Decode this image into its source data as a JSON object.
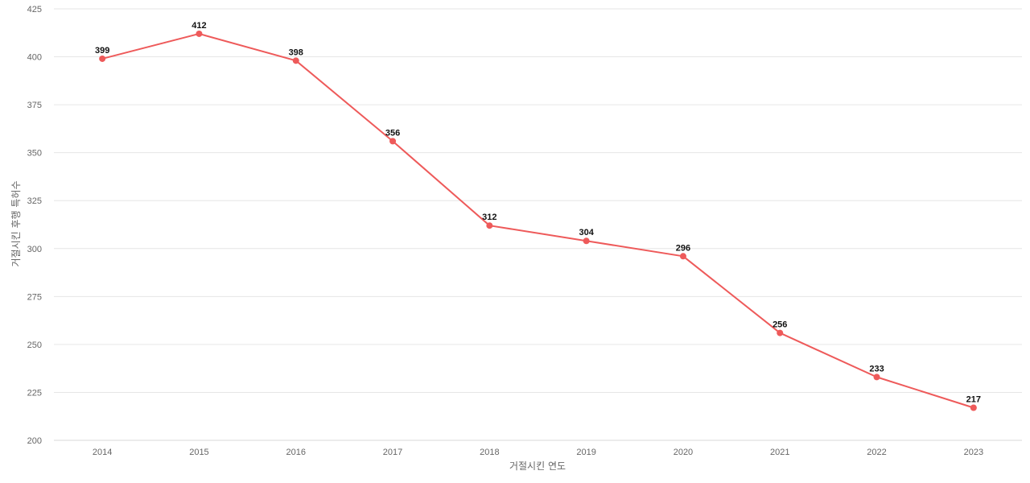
{
  "chart_data": {
    "type": "line",
    "categories": [
      "2014",
      "2015",
      "2016",
      "2017",
      "2018",
      "2019",
      "2020",
      "2021",
      "2022",
      "2023"
    ],
    "series": [
      {
        "values": [
          399,
          412,
          398,
          356,
          312,
          304,
          296,
          256,
          233,
          217
        ],
        "color": "#ee5a5a"
      }
    ],
    "xlabel": "거절시킨 연도",
    "ylabel": "거절시킨 후행 특허수",
    "ylim": [
      200,
      425
    ],
    "yticks": [
      200,
      225,
      250,
      275,
      300,
      325,
      350,
      375,
      400,
      425
    ],
    "grid": true,
    "data_labels": true
  }
}
